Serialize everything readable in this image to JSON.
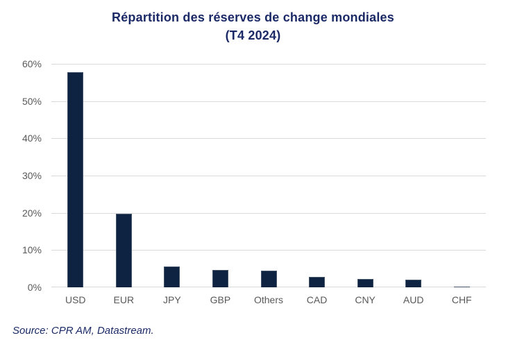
{
  "page": {
    "background": "#ffffff"
  },
  "title": {
    "line1": "Répartition des réserves de change mondiales",
    "line2": "(T4 2024)"
  },
  "source": {
    "text": "Source: CPR AM, Datastream."
  },
  "chart_data": {
    "type": "bar",
    "title": "Répartition des réserves de change mondiales",
    "subtitle": "(T4 2024)",
    "categories": [
      "USD",
      "EUR",
      "JPY",
      "GBP",
      "Others",
      "CAD",
      "CNY",
      "AUD",
      "CHF"
    ],
    "values": [
      57.8,
      19.8,
      5.6,
      4.7,
      4.5,
      2.8,
      2.2,
      2.1,
      0.2
    ],
    "unit": "%",
    "xlabel": "",
    "ylabel": "",
    "ylim": [
      0,
      60
    ],
    "ytick_step": 10,
    "ytick_labels": [
      "0%",
      "10%",
      "20%",
      "30%",
      "40%",
      "50%",
      "60%"
    ],
    "grid": true,
    "legend": "none",
    "colors": {
      "bar_fill": "#0E2242",
      "bar_edge": "#44546A",
      "gridline": "#D9D9D9",
      "axis_line": "#D9D9D9",
      "tick_text": "#595959",
      "title_text": "#1B2A66",
      "source_text": "#1B2A66"
    }
  }
}
